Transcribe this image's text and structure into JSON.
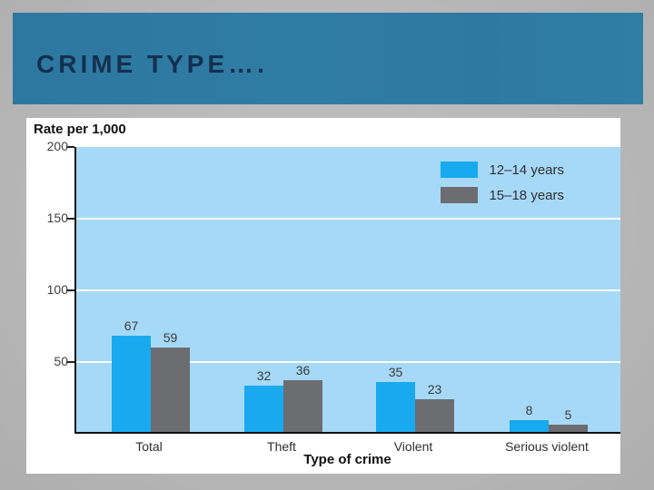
{
  "slide": {
    "title": "CRIME TYPE…."
  },
  "colors": {
    "canvas_bg": "#b9b9b9",
    "header_bg": "#2e7aa2",
    "header_text": "#14304f",
    "panel_bg": "#ffffff",
    "plot_bg": "#a6d9f7",
    "series_blue": "#18a9ee",
    "series_gray": "#6c6d70",
    "gridline": "#ffffff",
    "axis": "#111111"
  },
  "chart_data": {
    "type": "bar",
    "title": "Rate per 1,000",
    "xlabel": "Type of crime",
    "categories": [
      "Total",
      "Theft",
      "Violent",
      "Serious violent"
    ],
    "series": [
      {
        "name": "12–14 years",
        "color": "#18a9ee",
        "values": [
          67,
          32,
          35,
          8
        ]
      },
      {
        "name": "15–18 years",
        "color": "#6c6d70",
        "values": [
          59,
          36,
          23,
          5
        ]
      }
    ],
    "ylim": [
      0,
      200
    ],
    "yticks": [
      200,
      150,
      100,
      50
    ],
    "gridlines": [
      150,
      100,
      50
    ],
    "grid": true,
    "legend_position": "top-right"
  }
}
